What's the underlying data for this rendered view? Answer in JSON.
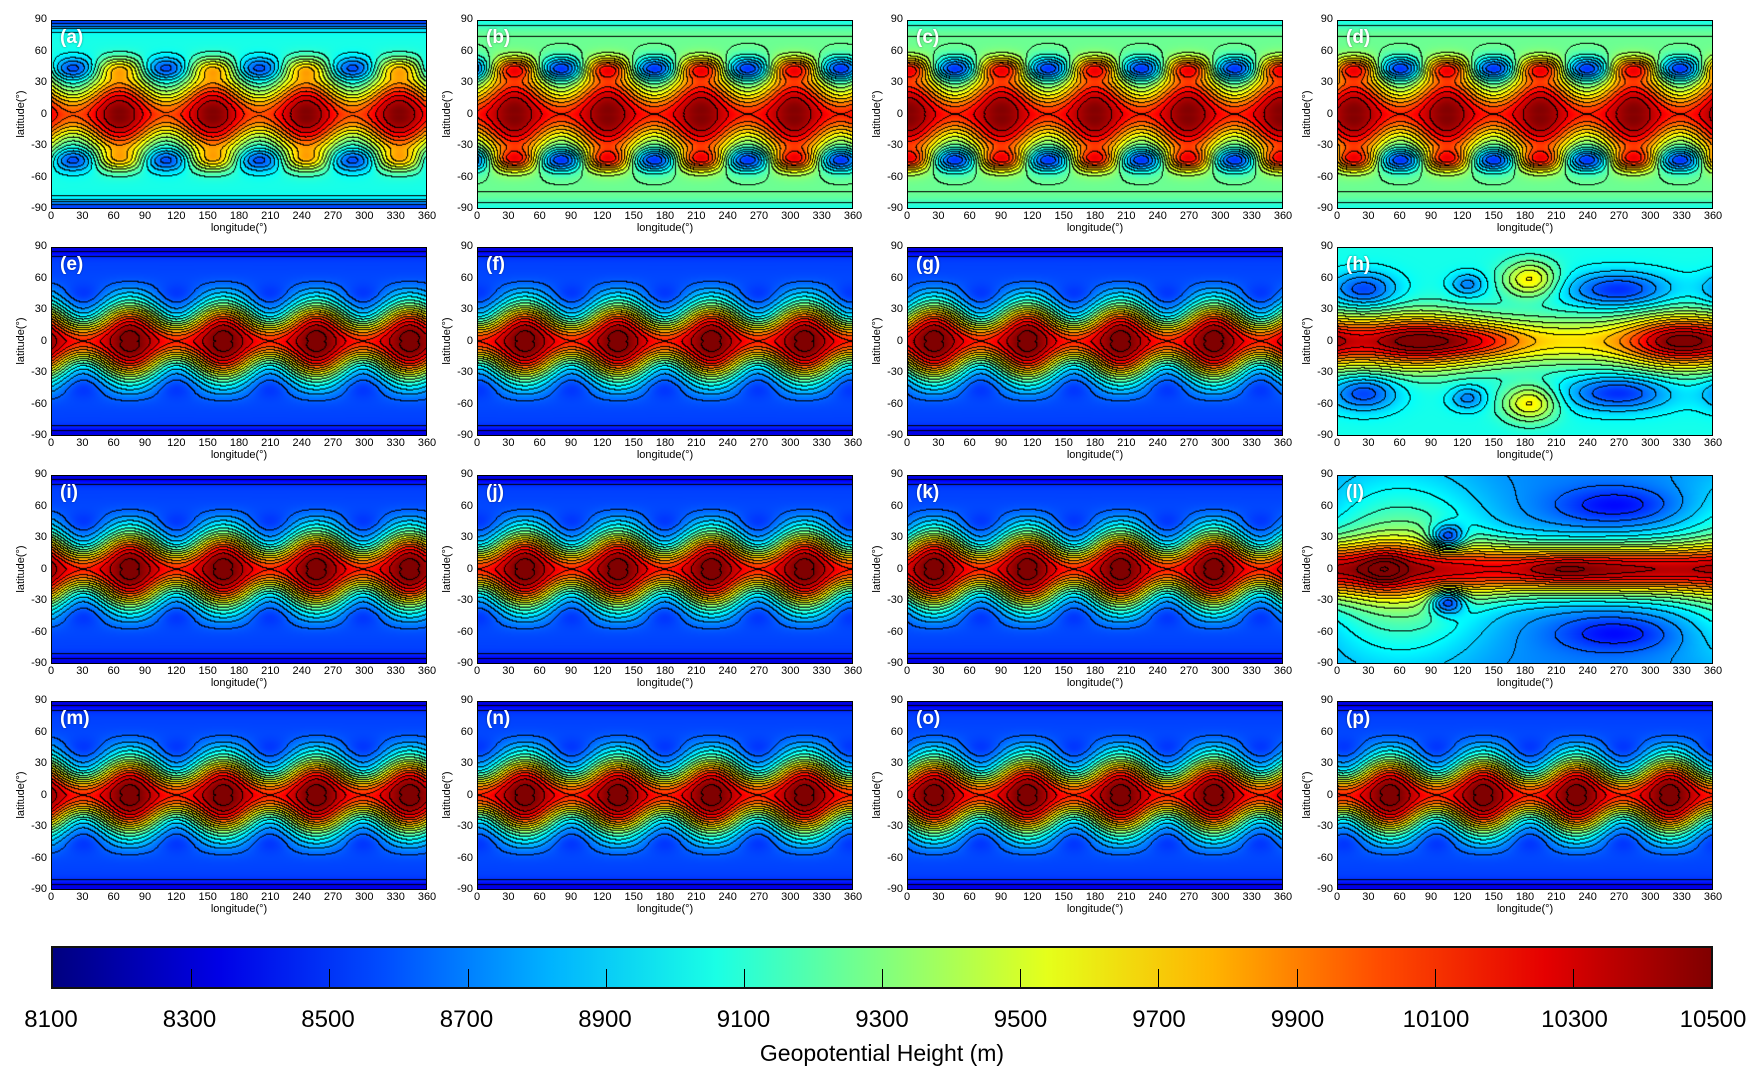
{
  "chart_data": {
    "type": "heatmap",
    "panels": [
      "(a)",
      "(b)",
      "(c)",
      "(d)",
      "(e)",
      "(f)",
      "(g)",
      "(h)",
      "(i)",
      "(j)",
      "(k)",
      "(l)",
      "(m)",
      "(n)",
      "(o)",
      "(p)"
    ],
    "xlabel": "longitude(°)",
    "ylabel": "latitude(°)",
    "xticks": [
      "0",
      "30",
      "60",
      "90",
      "120",
      "150",
      "180",
      "210",
      "240",
      "270",
      "300",
      "330",
      "360"
    ],
    "yticks": [
      "90",
      "60",
      "30",
      "0",
      "-30",
      "-60",
      "-90"
    ],
    "xlim": [
      0,
      360
    ],
    "ylim": [
      -90,
      90
    ],
    "colormap": "jet",
    "contour_lines": "black",
    "colorbar": {
      "title": "Geopotential Height (m)",
      "range": [
        8100,
        10500
      ],
      "ticks": [
        "8100",
        "8300",
        "8500",
        "8700",
        "8900",
        "9100",
        "9300",
        "9500",
        "9700",
        "9900",
        "10100",
        "10300",
        "10500"
      ],
      "placement": "bottom"
    }
  }
}
